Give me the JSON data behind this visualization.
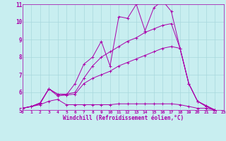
{
  "xlabel": "Windchill (Refroidissement éolien,°C)",
  "bg_color": "#c8eef0",
  "grid_color": "#a8d8dc",
  "line_color": "#aa00aa",
  "xlim": [
    0,
    23
  ],
  "ylim": [
    5,
    11
  ],
  "xticks": [
    0,
    1,
    2,
    3,
    4,
    5,
    6,
    7,
    8,
    9,
    10,
    11,
    12,
    13,
    14,
    15,
    16,
    17,
    18,
    19,
    20,
    21,
    22,
    23
  ],
  "yticks": [
    5,
    6,
    7,
    8,
    9,
    10,
    11
  ],
  "series": [
    [
      5.1,
      5.2,
      5.35,
      6.2,
      5.8,
      5.85,
      6.5,
      7.6,
      8.0,
      8.9,
      7.5,
      10.3,
      10.2,
      11.0,
      9.5,
      10.8,
      11.2,
      10.6,
      8.5,
      6.5,
      5.5,
      5.25,
      5.0
    ],
    [
      5.1,
      5.2,
      5.4,
      6.2,
      5.9,
      5.9,
      6.0,
      6.8,
      7.5,
      8.0,
      8.3,
      8.6,
      8.9,
      9.1,
      9.4,
      9.6,
      9.8,
      9.9,
      8.5,
      6.5,
      5.5,
      5.2,
      5.0
    ],
    [
      5.1,
      5.2,
      5.4,
      6.2,
      5.9,
      5.85,
      5.9,
      6.5,
      6.8,
      7.0,
      7.2,
      7.5,
      7.7,
      7.9,
      8.1,
      8.3,
      8.5,
      8.6,
      8.5,
      6.5,
      5.5,
      5.2,
      5.0
    ],
    [
      5.1,
      5.2,
      5.3,
      5.5,
      5.6,
      5.3,
      5.3,
      5.3,
      5.3,
      5.3,
      5.3,
      5.35,
      5.35,
      5.35,
      5.35,
      5.35,
      5.35,
      5.35,
      5.3,
      5.2,
      5.1,
      5.1,
      5.0
    ]
  ]
}
